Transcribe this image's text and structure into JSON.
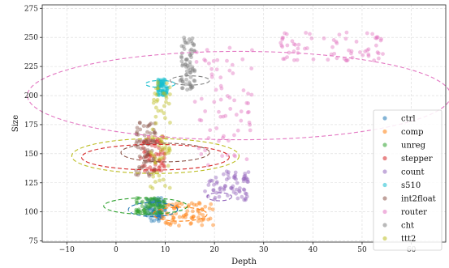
{
  "chart_data": {
    "type": "scatter",
    "title": "",
    "xlabel": "Depth",
    "ylabel": "Size",
    "xlim": [
      -15,
      67
    ],
    "ylim": [
      74,
      278
    ],
    "xticks": [
      -10,
      0,
      10,
      20,
      30,
      40,
      50,
      60
    ],
    "yticks": [
      75,
      100,
      125,
      150,
      175,
      200,
      225,
      250,
      275
    ],
    "grid": true,
    "legend_position": "lower-right",
    "series": [
      {
        "name": "ctrl",
        "color": "#1f77b4",
        "clusters": [
          {
            "x": [
              6,
              10
            ],
            "y": [
              92,
              112
            ]
          }
        ],
        "ellipse": {
          "cx": 7.5,
          "cy": 102,
          "rx": 5,
          "ry": 6
        }
      },
      {
        "name": "comp",
        "color": "#ff7f0e",
        "clusters": [
          {
            "x": [
              9,
              20
            ],
            "y": [
              88,
              108
            ]
          }
        ],
        "ellipse": {
          "cx": 13,
          "cy": 98,
          "rx": 5.5,
          "ry": 6
        }
      },
      {
        "name": "unreg",
        "color": "#2ca02c",
        "clusters": [
          {
            "x": [
              4,
              10
            ],
            "y": [
              98,
              112
            ]
          }
        ],
        "ellipse": {
          "cx": 6,
          "cy": 105,
          "rx": 8.5,
          "ry": 7
        }
      },
      {
        "name": "stepper",
        "color": "#d62728",
        "clusters": [
          {
            "x": [
              5,
              10
            ],
            "y": [
              135,
              165
            ]
          }
        ],
        "ellipse": {
          "cx": 8,
          "cy": 147,
          "rx": 15,
          "ry": 11
        }
      },
      {
        "name": "count",
        "color": "#9467bd",
        "clusters": [
          {
            "x": [
              18,
              27
            ],
            "y": [
              110,
              135
            ]
          }
        ],
        "ellipse": {
          "cx": 21,
          "cy": 113,
          "rx": 2.5,
          "ry": 3.5
        }
      },
      {
        "name": "s510",
        "color": "#17becf",
        "clusters": [
          {
            "x": [
              8.5,
              10.5
            ],
            "y": [
              200,
              215
            ]
          }
        ],
        "ellipse": {
          "cx": 9,
          "cy": 210,
          "rx": 3,
          "ry": 3
        }
      },
      {
        "name": "int2float",
        "color": "#8c564b",
        "clusters": [
          {
            "x": [
              4,
              8
            ],
            "y": [
              130,
              178
            ]
          }
        ],
        "ellipse": {
          "cx": 10,
          "cy": 151,
          "rx": 9,
          "ry": 8
        }
      },
      {
        "name": "router",
        "color": "#e377c2",
        "clusters": [
          {
            "x": [
              16,
              28
            ],
            "y": [
              140,
              245
            ]
          },
          {
            "x": [
              33,
              55
            ],
            "y": [
              230,
              255
            ]
          }
        ],
        "ellipse": {
          "cx": 25,
          "cy": 200,
          "rx": 43,
          "ry": 38
        }
      },
      {
        "name": "cht",
        "color": "#7f7f7f",
        "clusters": [
          {
            "x": [
              13,
              16
            ],
            "y": [
              205,
              250
            ]
          }
        ],
        "ellipse": {
          "cx": 15,
          "cy": 213,
          "rx": 4,
          "ry": 4
        }
      },
      {
        "name": "ttt2",
        "color": "#bcbd22",
        "clusters": [
          {
            "x": [
              7,
              11
            ],
            "y": [
              120,
              220
            ]
          }
        ],
        "ellipse": {
          "cx": 8,
          "cy": 148,
          "rx": 17,
          "ry": 15
        }
      }
    ]
  }
}
